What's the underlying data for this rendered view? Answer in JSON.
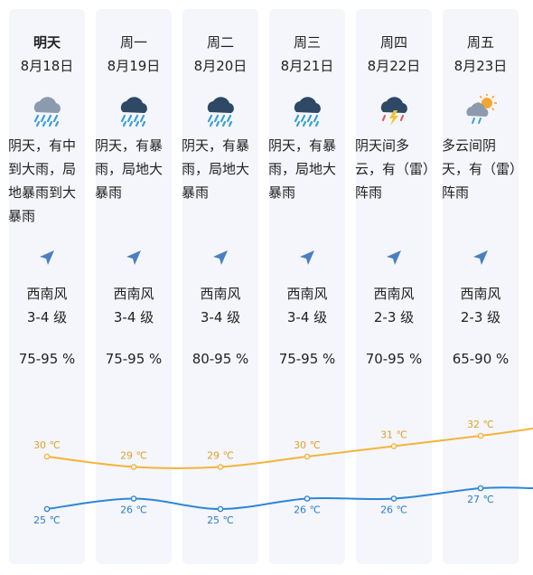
{
  "days": [
    {
      "day": "明天",
      "date": "8月18日",
      "desc": "阴天，有中到大雨，局地暴雨到大暴雨",
      "icon": "heavy-rain-cloud-icon",
      "wind_dir": "西南风",
      "wind_level": "3-4 级",
      "humidity": "75-95 %",
      "high": "30 ℃",
      "low": "25 ℃"
    },
    {
      "day": "周一",
      "date": "8月19日",
      "desc": "阴天，有暴雨，局地大暴雨",
      "icon": "rainstorm-cloud-icon",
      "wind_dir": "西南风",
      "wind_level": "3-4 级",
      "humidity": "75-95 %",
      "high": "29 ℃",
      "low": "26 ℃"
    },
    {
      "day": "周二",
      "date": "8月20日",
      "desc": "阴天，有暴雨，局地大暴雨",
      "icon": "rainstorm-cloud-icon",
      "wind_dir": "西南风",
      "wind_level": "3-4 级",
      "humidity": "80-95 %",
      "high": "29 ℃",
      "low": "25 ℃"
    },
    {
      "day": "周三",
      "date": "8月21日",
      "desc": "阴天，有暴雨，局地大暴雨",
      "icon": "rainstorm-cloud-icon",
      "wind_dir": "西南风",
      "wind_level": "3-4 级",
      "humidity": "75-95 %",
      "high": "30 ℃",
      "low": "26 ℃"
    },
    {
      "day": "周四",
      "date": "8月22日",
      "desc": "阴天间多云，有（雷）阵雨",
      "icon": "thunder-rain-cloud-icon",
      "wind_dir": "西南风",
      "wind_level": "2-3 级",
      "humidity": "70-95 %",
      "high": "31 ℃",
      "low": "26 ℃"
    },
    {
      "day": "周五",
      "date": "8月23日",
      "desc": "多云间阴天，有（雷）阵雨",
      "icon": "sun-cloud-rain-icon",
      "wind_dir": "西南风",
      "wind_level": "2-3 级",
      "humidity": "65-90 %",
      "high": "32 ℃",
      "low": "27 ℃"
    }
  ],
  "temps": {
    "high": [
      30,
      29,
      29,
      30,
      31,
      32
    ],
    "low": [
      25,
      26,
      25,
      26,
      26,
      27
    ]
  },
  "colors": {
    "high_line": "#f5b33a",
    "low_line": "#2f86d6",
    "high_label": "#e0a12b",
    "low_label": "#2f7fc8",
    "card_bg": "#f4f6fb"
  }
}
